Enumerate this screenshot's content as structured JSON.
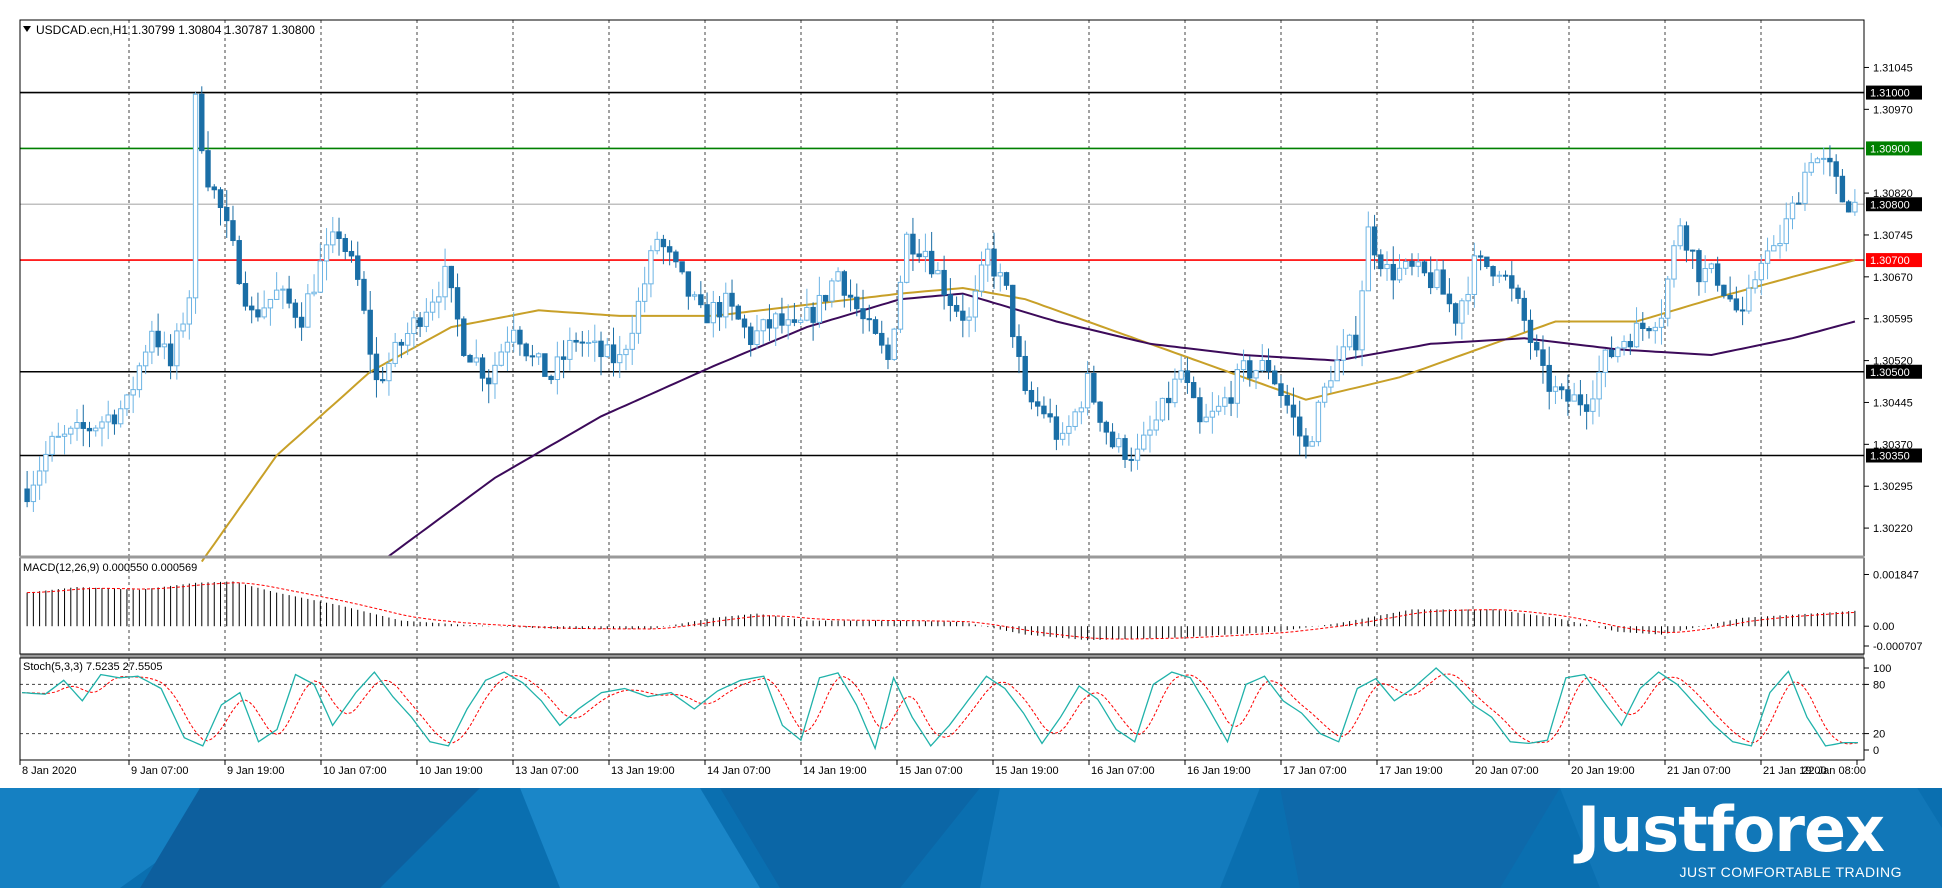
{
  "chart_data": {
    "type": "candlestick",
    "header": "USDCAD.ecn,H1  1.30799 1.30804 1.30787 1.30800",
    "price_ticks": [
      "1.31045",
      "1.30970",
      "1.30820",
      "1.30745",
      "1.30670",
      "1.30595",
      "1.30520",
      "1.30445",
      "1.30370",
      "1.30295",
      "1.30220"
    ],
    "price_range": [
      1.3017,
      1.3113
    ],
    "levels": [
      {
        "label": "1.31000",
        "value": 1.31,
        "color": "#000000"
      },
      {
        "label": "1.30900",
        "value": 1.309,
        "color": "#008000"
      },
      {
        "label": "1.30800",
        "value": 1.308,
        "color": "#000000"
      },
      {
        "label": "1.30700",
        "value": 1.307,
        "color": "#ff0000"
      },
      {
        "label": "1.30500",
        "value": 1.305,
        "color": "#000000"
      },
      {
        "label": "1.30350",
        "value": 1.3035,
        "color": "#000000"
      }
    ],
    "current_price": 1.308,
    "time_labels": [
      "8 Jan 2020",
      "9 Jan 07:00",
      "9 Jan 19:00",
      "10 Jan 07:00",
      "10 Jan 19:00",
      "13 Jan 07:00",
      "13 Jan 19:00",
      "14 Jan 07:00",
      "14 Jan 19:00",
      "15 Jan 07:00",
      "15 Jan 19:00",
      "16 Jan 07:00",
      "16 Jan 19:00",
      "17 Jan 07:00",
      "17 Jan 19:00",
      "20 Jan 07:00",
      "20 Jan 19:00",
      "21 Jan 07:00",
      "21 Jan 19:00",
      "22 Jan 08:00"
    ],
    "close_keypoints": [
      [
        0,
        1.3029
      ],
      [
        4,
        1.3037
      ],
      [
        10,
        1.304
      ],
      [
        16,
        1.3044
      ],
      [
        20,
        1.3058
      ],
      [
        23,
        1.3051
      ],
      [
        26,
        1.3064
      ],
      [
        27,
        1.3098
      ],
      [
        29,
        1.3085
      ],
      [
        31,
        1.3079
      ],
      [
        34,
        1.3068
      ],
      [
        36,
        1.306
      ],
      [
        40,
        1.3064
      ],
      [
        44,
        1.306
      ],
      [
        47,
        1.3069
      ],
      [
        50,
        1.3075
      ],
      [
        53,
        1.3066
      ],
      [
        56,
        1.3048
      ],
      [
        60,
        1.3055
      ],
      [
        64,
        1.3062
      ],
      [
        67,
        1.3067
      ],
      [
        70,
        1.3055
      ],
      [
        74,
        1.3049
      ],
      [
        78,
        1.3059
      ],
      [
        81,
        1.3052
      ],
      [
        84,
        1.3049
      ],
      [
        88,
        1.3056
      ],
      [
        92,
        1.3053
      ],
      [
        95,
        1.3052
      ],
      [
        98,
        1.3062
      ],
      [
        101,
        1.3074
      ],
      [
        104,
        1.3068
      ],
      [
        108,
        1.306
      ],
      [
        112,
        1.3062
      ],
      [
        116,
        1.3056
      ],
      [
        120,
        1.3059
      ],
      [
        123,
        1.3057
      ],
      [
        127,
        1.3062
      ],
      [
        130,
        1.3068
      ],
      [
        134,
        1.3059
      ],
      [
        138,
        1.3052
      ],
      [
        141,
        1.3074
      ],
      [
        144,
        1.3072
      ],
      [
        148,
        1.3063
      ],
      [
        151,
        1.3059
      ],
      [
        154,
        1.3071
      ],
      [
        157,
        1.3064
      ],
      [
        160,
        1.3045
      ],
      [
        163,
        1.3043
      ],
      [
        166,
        1.3037
      ],
      [
        170,
        1.3048
      ],
      [
        174,
        1.3037
      ],
      [
        178,
        1.3035
      ],
      [
        182,
        1.3043
      ],
      [
        185,
        1.305
      ],
      [
        188,
        1.304
      ],
      [
        191,
        1.3043
      ],
      [
        195,
        1.305
      ],
      [
        199,
        1.3051
      ],
      [
        202,
        1.3044
      ],
      [
        205,
        1.3036
      ],
      [
        209,
        1.305
      ],
      [
        213,
        1.3056
      ],
      [
        215,
        1.3075
      ],
      [
        218,
        1.3068
      ],
      [
        222,
        1.3068
      ],
      [
        226,
        1.3066
      ],
      [
        229,
        1.306
      ],
      [
        232,
        1.3069
      ],
      [
        236,
        1.3069
      ],
      [
        240,
        1.3059
      ],
      [
        243,
        1.3049
      ],
      [
        246,
        1.3045
      ],
      [
        250,
        1.3045
      ],
      [
        253,
        1.3052
      ],
      [
        256,
        1.3056
      ],
      [
        259,
        1.3058
      ],
      [
        262,
        1.3061
      ],
      [
        265,
        1.3077
      ],
      [
        268,
        1.3068
      ],
      [
        271,
        1.3067
      ],
      [
        275,
        1.3059
      ],
      [
        278,
        1.3071
      ],
      [
        280,
        1.3071
      ],
      [
        283,
        1.3079
      ],
      [
        286,
        1.3089
      ],
      [
        289,
        1.3086
      ],
      [
        291,
        1.3081
      ],
      [
        293,
        1.308
      ]
    ],
    "ema_fast": {
      "color": "#c8a028",
      "keypoints": [
        [
          28,
          1.3016
        ],
        [
          40,
          1.3035
        ],
        [
          55,
          1.305
        ],
        [
          68,
          1.3058
        ],
        [
          82,
          1.3061
        ],
        [
          95,
          1.306
        ],
        [
          110,
          1.306
        ],
        [
          125,
          1.3062
        ],
        [
          140,
          1.3064
        ],
        [
          150,
          1.3065
        ],
        [
          160,
          1.3063
        ],
        [
          175,
          1.3057
        ],
        [
          190,
          1.3051
        ],
        [
          205,
          1.3045
        ],
        [
          220,
          1.3049
        ],
        [
          235,
          1.3055
        ],
        [
          245,
          1.3059
        ],
        [
          258,
          1.3059
        ],
        [
          270,
          1.3063
        ],
        [
          283,
          1.3067
        ],
        [
          293,
          1.307
        ]
      ]
    },
    "ema_slow": {
      "color": "#3c0a5a",
      "keypoints": [
        [
          58,
          1.3017
        ],
        [
          75,
          1.3031
        ],
        [
          92,
          1.3042
        ],
        [
          110,
          1.3051
        ],
        [
          125,
          1.3058
        ],
        [
          140,
          1.3063
        ],
        [
          150,
          1.3064
        ],
        [
          165,
          1.3059
        ],
        [
          180,
          1.3055
        ],
        [
          195,
          1.3053
        ],
        [
          210,
          1.3052
        ],
        [
          225,
          1.3055
        ],
        [
          240,
          1.3056
        ],
        [
          255,
          1.3054
        ],
        [
          270,
          1.3053
        ],
        [
          283,
          1.3056
        ],
        [
          293,
          1.3059
        ]
      ]
    },
    "macd": {
      "label": "MACD(12,26,9) 0.000550 0.000569",
      "ticks": [
        "0.001847",
        "0.00",
        "-0.000707"
      ],
      "range": [
        -0.00085,
        0.00215
      ],
      "histogram_keypoints": [
        [
          0,
          0.0012
        ],
        [
          8,
          0.0014
        ],
        [
          18,
          0.0013
        ],
        [
          27,
          0.00155
        ],
        [
          33,
          0.0016
        ],
        [
          40,
          0.0012
        ],
        [
          50,
          0.00075
        ],
        [
          60,
          0.0002
        ],
        [
          70,
          5e-05
        ],
        [
          85,
          -0.0001
        ],
        [
          100,
          -0.0001
        ],
        [
          110,
          0.0003
        ],
        [
          117,
          0.00045
        ],
        [
          125,
          0.0002
        ],
        [
          140,
          0.0002
        ],
        [
          150,
          0.00015
        ],
        [
          160,
          -0.0003
        ],
        [
          170,
          -0.0005
        ],
        [
          185,
          -0.0004
        ],
        [
          200,
          -0.0002
        ],
        [
          210,
          0.0001
        ],
        [
          222,
          0.0006
        ],
        [
          235,
          0.0006
        ],
        [
          245,
          0.0003
        ],
        [
          255,
          -0.0002
        ],
        [
          262,
          -0.0003
        ],
        [
          275,
          0.0003
        ],
        [
          293,
          0.00055
        ]
      ],
      "signal_color": "#ff0000"
    },
    "stoch": {
      "label": "Stoch(5,3,3) 7.5235 27.5505",
      "ticks": [
        "100",
        "80",
        "20",
        "0"
      ],
      "k_color": "#20b2aa",
      "d_color": "#ff0000",
      "k_keypoints": [
        [
          0,
          70
        ],
        [
          5,
          68
        ],
        [
          9,
          85
        ],
        [
          13,
          60
        ],
        [
          17,
          92
        ],
        [
          21,
          88
        ],
        [
          25,
          90
        ],
        [
          30,
          75
        ],
        [
          35,
          15
        ],
        [
          39,
          5
        ],
        [
          43,
          55
        ],
        [
          47,
          70
        ],
        [
          51,
          10
        ],
        [
          55,
          25
        ],
        [
          59,
          92
        ],
        [
          63,
          80
        ],
        [
          67,
          30
        ],
        [
          72,
          70
        ],
        [
          76,
          95
        ],
        [
          80,
          65
        ],
        [
          84,
          40
        ],
        [
          88,
          10
        ],
        [
          92,
          5
        ],
        [
          96,
          50
        ],
        [
          100,
          85
        ],
        [
          104,
          95
        ],
        [
          108,
          82
        ],
        [
          112,
          60
        ],
        [
          116,
          30
        ],
        [
          120,
          50
        ],
        [
          125,
          70
        ],
        [
          130,
          75
        ],
        [
          135,
          65
        ],
        [
          140,
          70
        ],
        [
          145,
          50
        ],
        [
          150,
          72
        ],
        [
          155,
          85
        ],
        [
          160,
          90
        ],
        [
          164,
          30
        ],
        [
          168,
          12
        ],
        [
          172,
          88
        ],
        [
          176,
          94
        ],
        [
          180,
          55
        ],
        [
          184,
          2
        ],
        [
          188,
          88
        ],
        [
          192,
          40
        ],
        [
          196,
          5
        ],
        [
          200,
          30
        ],
        [
          204,
          60
        ],
        [
          208,
          90
        ],
        [
          212,
          75
        ],
        [
          216,
          45
        ],
        [
          220,
          8
        ],
        [
          224,
          40
        ],
        [
          228,
          78
        ],
        [
          232,
          62
        ],
        [
          236,
          25
        ],
        [
          240,
          10
        ],
        [
          244,
          80
        ],
        [
          248,
          95
        ],
        [
          252,
          88
        ],
        [
          256,
          50
        ],
        [
          260,
          10
        ],
        [
          264,
          80
        ],
        [
          268,
          90
        ],
        [
          272,
          60
        ],
        [
          276,
          45
        ],
        [
          280,
          20
        ],
        [
          284,
          10
        ],
        [
          288,
          75
        ],
        [
          292,
          87
        ],
        [
          296,
          60
        ],
        [
          300,
          75
        ],
        [
          305,
          100
        ],
        [
          309,
          80
        ],
        [
          313,
          55
        ],
        [
          317,
          40
        ],
        [
          321,
          10
        ],
        [
          325,
          8
        ],
        [
          329,
          12
        ],
        [
          333,
          88
        ],
        [
          337,
          92
        ],
        [
          341,
          60
        ],
        [
          345,
          30
        ],
        [
          349,
          75
        ],
        [
          353,
          95
        ],
        [
          357,
          80
        ],
        [
          361,
          55
        ],
        [
          365,
          30
        ],
        [
          369,
          10
        ],
        [
          373,
          5
        ],
        [
          377,
          70
        ],
        [
          381,
          96
        ],
        [
          385,
          40
        ],
        [
          389,
          5
        ],
        [
          393,
          9
        ]
      ]
    }
  },
  "brand": {
    "logo": "Justforex",
    "slogan": "JUST COMFORTABLE TRADING"
  }
}
